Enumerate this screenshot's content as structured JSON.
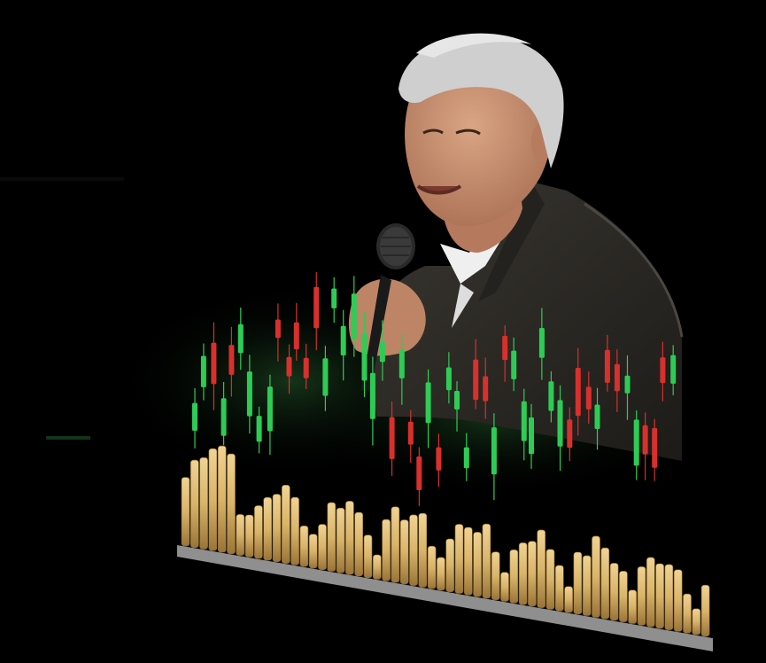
{
  "scene": {
    "background_color": "#000000",
    "subject": "speaker-with-microphone",
    "elements": [
      "person-photo",
      "microphone",
      "candlestick-overlay",
      "gold-volume-bars"
    ]
  },
  "colors": {
    "bullish": "#2ecc55",
    "bearish": "#d8302c",
    "gold": "#d9b46a",
    "gold_shadow": "#8a6a33",
    "jacket": "#2b2924",
    "shirt": "#efefef",
    "skin": "#c78e70",
    "hair": "#cfcfcf"
  }
}
